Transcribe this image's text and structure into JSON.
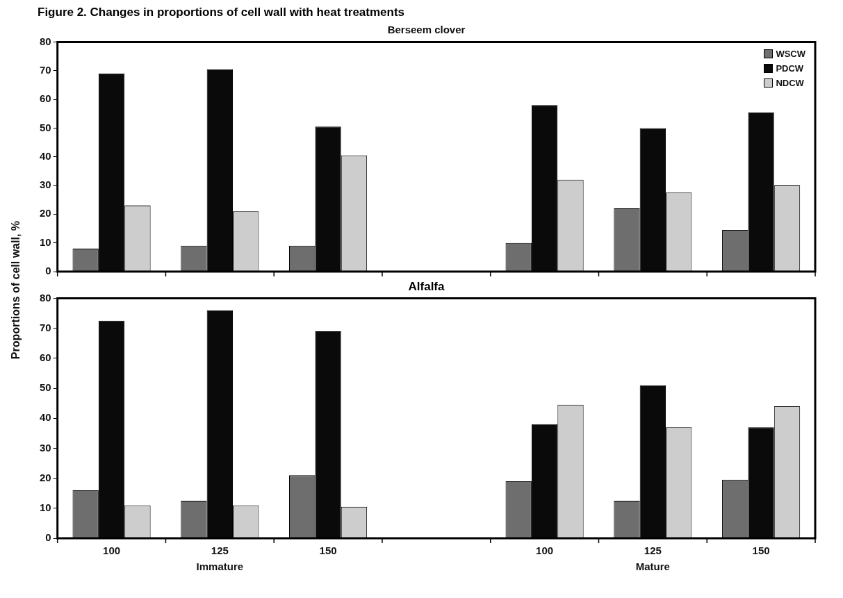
{
  "chart_data": [
    {
      "type": "bar",
      "title": "Figure 2. Changes in proportions of cell wall with heat treatments",
      "subtitle": "Berseem clover",
      "ylabel": "Proportions of cell wall, %",
      "categories": [
        "100",
        "125",
        "150",
        null,
        "100",
        "125",
        "150"
      ],
      "series": [
        {
          "name": "WSCW",
          "color": "#6e6e6e",
          "values": [
            8,
            9,
            9,
            null,
            10,
            22,
            14.5
          ]
        },
        {
          "name": "PDCW",
          "color": "#0a0a0a",
          "values": [
            69,
            70.5,
            50.5,
            null,
            58,
            50,
            55.5
          ]
        },
        {
          "name": "NDCW",
          "color": "#cdcdcd",
          "values": [
            23,
            21,
            40.5,
            null,
            32,
            27.5,
            30
          ]
        }
      ],
      "ylim": [
        0,
        80
      ],
      "yticks": [
        0,
        10,
        20,
        30,
        40,
        50,
        60,
        70,
        80
      ],
      "grid": false,
      "legend": "top right",
      "tick_labels": "y"
    },
    {
      "type": "bar",
      "title": "Alfalfa",
      "annotations": [
        "Immature",
        "Mature"
      ],
      "categories": [
        "100",
        "125",
        "150",
        null,
        "100",
        "125",
        "150"
      ],
      "series": [
        {
          "color": "#6e6e6e",
          "values": [
            16,
            12.5,
            21,
            null,
            19,
            12.5,
            19.5
          ]
        },
        {
          "color": "#0a0a0a",
          "values": [
            72.5,
            76,
            69,
            null,
            38,
            51,
            37
          ]
        },
        {
          "color": "#cdcdcd",
          "values": [
            11,
            11,
            10.5,
            null,
            44.5,
            37,
            44
          ]
        }
      ],
      "ylim": [
        0,
        80
      ],
      "yticks": [
        0,
        10,
        20,
        30,
        40,
        50,
        60,
        70,
        80
      ],
      "grid": false
    }
  ]
}
